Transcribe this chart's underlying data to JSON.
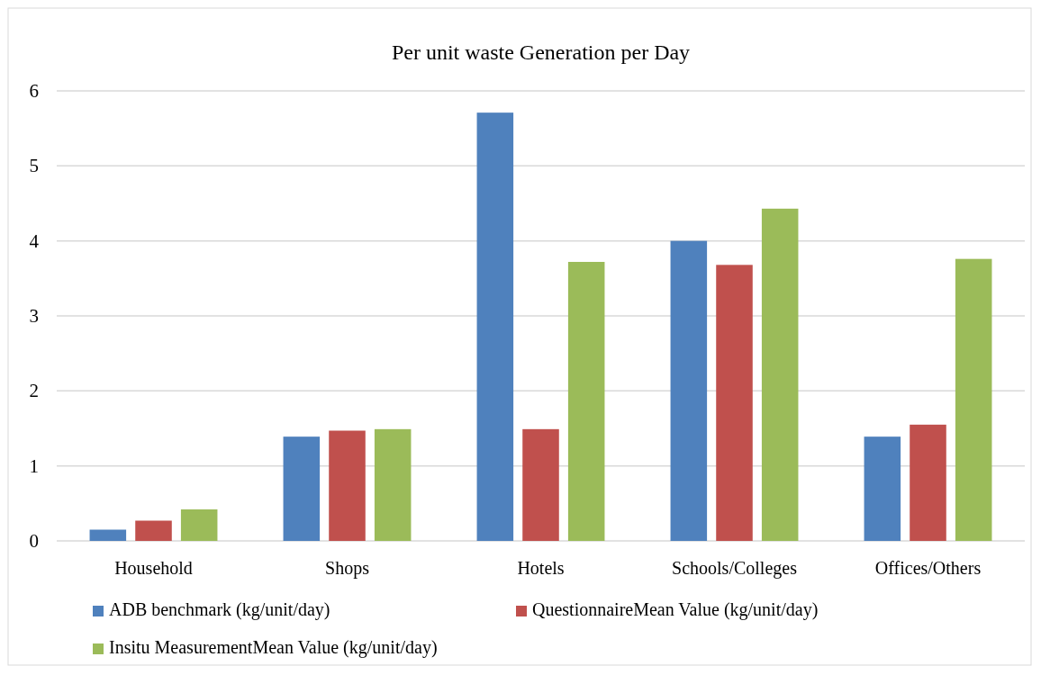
{
  "chart_data": {
    "type": "bar",
    "title": "Per unit waste Generation per Day",
    "categories": [
      "Household",
      "Shops",
      "Hotels",
      "Schools/Colleges",
      "Offices/Others"
    ],
    "series": [
      {
        "name": "ADB benchmark (kg/unit/day)",
        "color": "#4f81bd",
        "values": [
          0.15,
          1.39,
          5.71,
          4.0,
          1.39
        ]
      },
      {
        "name": "QuestionnaireMean Value (kg/unit/day)",
        "color": "#c0504d",
        "values": [
          0.27,
          1.47,
          1.49,
          3.68,
          1.55
        ]
      },
      {
        "name": "Insitu MeasurementMean Value (kg/unit/day)",
        "color": "#9bbb59",
        "values": [
          0.42,
          1.49,
          3.72,
          4.43,
          3.76
        ]
      }
    ],
    "ylim": [
      0,
      6
    ],
    "yticks": [
      0,
      1,
      2,
      3,
      4,
      5,
      6
    ],
    "grid": "y",
    "legend": "bottom"
  }
}
